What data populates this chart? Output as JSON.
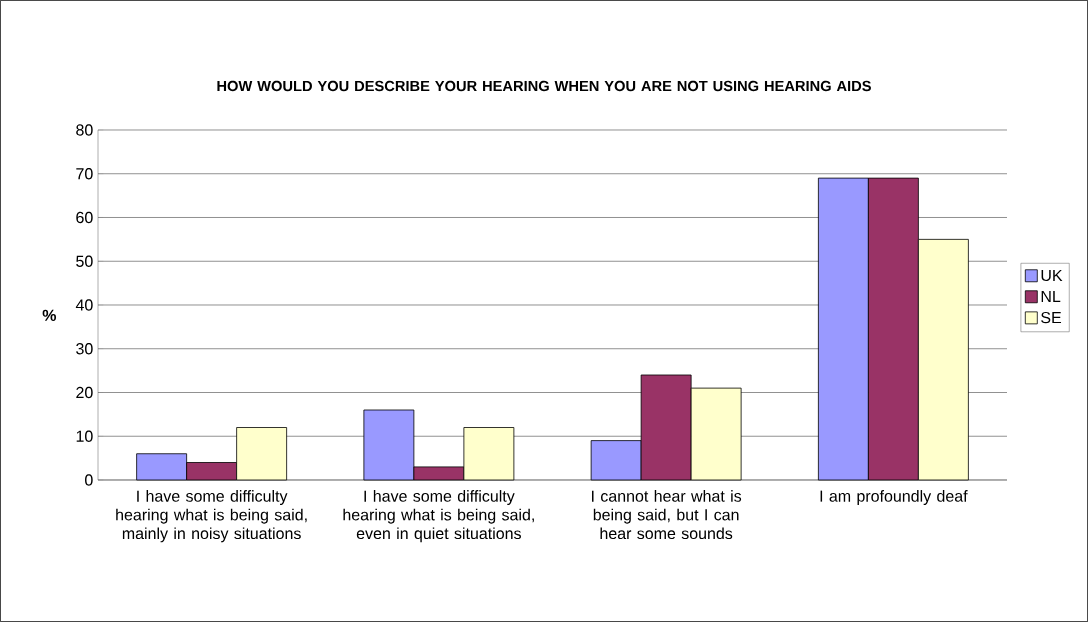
{
  "chart_data": {
    "type": "bar",
    "title": "HOW WOULD YOU DESCRIBE YOUR HEARING WHEN YOU ARE NOT USING HEARING AIDS",
    "ylabel": "%",
    "categories": [
      "I have some difficulty hearing what is being said, mainly in noisy situations",
      "I have some difficulty hearing what is being said, even in quiet situations",
      "I cannot hear what is being said, but I can hear some sounds",
      "I am profoundly deaf"
    ],
    "series": [
      {
        "name": "UK",
        "color": "#9999ff",
        "values": [
          6,
          16,
          9,
          69
        ]
      },
      {
        "name": "NL",
        "color": "#993366",
        "values": [
          4,
          3,
          24,
          69
        ]
      },
      {
        "name": "SE",
        "color": "#ffffcc",
        "values": [
          12,
          12,
          21,
          55
        ]
      }
    ],
    "ylim": [
      0,
      80
    ],
    "yticks": [
      0,
      10,
      20,
      30,
      40,
      50,
      60,
      70,
      80
    ],
    "grid": "y",
    "legend": "right"
  }
}
